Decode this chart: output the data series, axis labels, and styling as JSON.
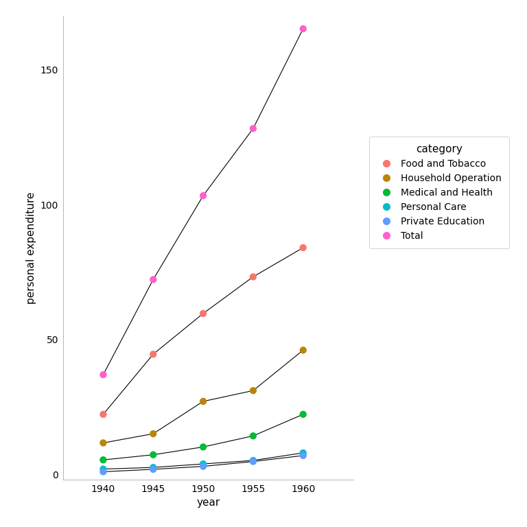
{
  "years": [
    1940,
    1945,
    1950,
    1955,
    1960
  ],
  "series": {
    "Food and Tobacco": [
      22.2,
      44.5,
      59.6,
      73.2,
      84.0
    ],
    "Household Operation": [
      11.6,
      15.0,
      27.0,
      31.0,
      46.0
    ],
    "Medical and Health": [
      5.3,
      7.2,
      10.1,
      14.2,
      22.2
    ],
    "Personal Care": [
      1.9,
      2.5,
      3.8,
      5.1,
      7.9
    ],
    "Private Education": [
      0.9,
      1.8,
      2.9,
      4.7,
      6.9
    ],
    "Total": [
      36.9,
      72.2,
      103.3,
      128.2,
      165.2
    ]
  },
  "colors": {
    "Food and Tobacco": "#F8766D",
    "Household Operation": "#B8860B",
    "Medical and Health": "#00BA38",
    "Personal Care": "#00BFC4",
    "Private Education": "#619CFF",
    "Total": "#FF61CC"
  },
  "xlabel": "year",
  "ylabel": "personal expenditure",
  "legend_title": "category",
  "ylim": [
    -2,
    170
  ],
  "xlim": [
    1936,
    1965
  ],
  "yticks": [
    0,
    50,
    100,
    150
  ],
  "xticks": [
    1940,
    1945,
    1950,
    1955,
    1960
  ],
  "background_color": "#ffffff",
  "line_color": "#000000",
  "line_width": 0.8,
  "marker_size": 55
}
